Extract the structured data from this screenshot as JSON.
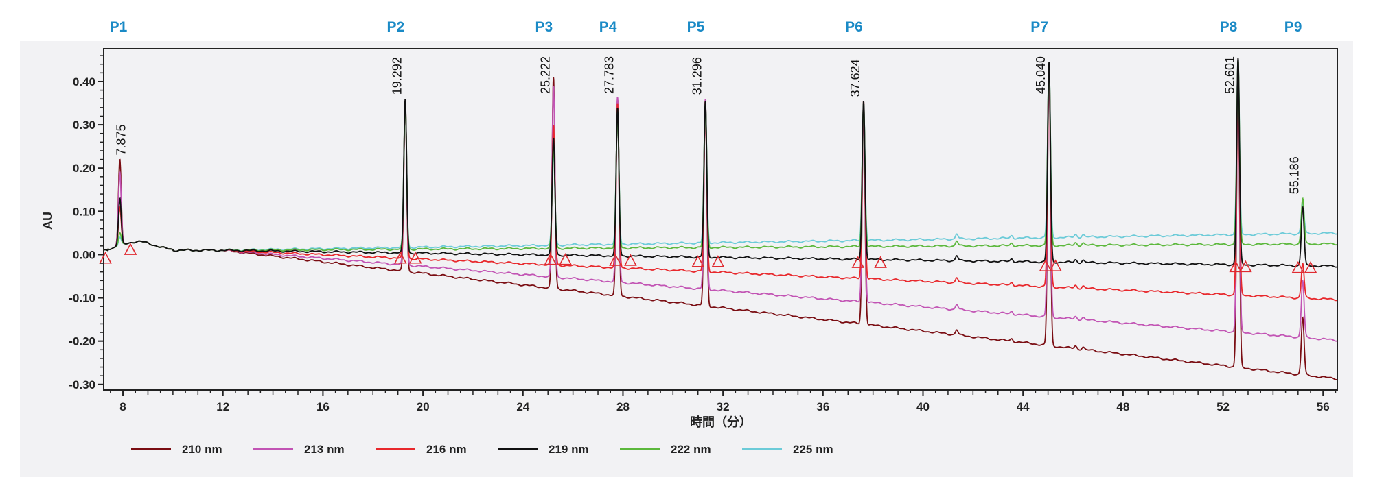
{
  "chart_data": {
    "type": "line",
    "title": "",
    "xlabel": "時間（分）",
    "ylabel": "AU",
    "xlim": [
      7.23,
      56.57
    ],
    "ylim": [
      -0.313,
      0.476
    ],
    "x_ticks": [
      8,
      12,
      16,
      20,
      24,
      28,
      32,
      36,
      40,
      44,
      48,
      52,
      56
    ],
    "x_tick_labels": [
      "8",
      "12",
      "16",
      "20",
      "24",
      "28",
      "32",
      "36",
      "40",
      "44",
      "48",
      "52",
      "56"
    ],
    "y_ticks": [
      0.4,
      0.3,
      0.2,
      0.1,
      0.0,
      -0.1,
      -0.2,
      -0.3
    ],
    "y_tick_labels": [
      "0.40",
      "0.30",
      "0.20",
      "0.10",
      "0.00",
      "-0.10",
      "-0.20",
      "-0.30"
    ],
    "grid": false,
    "legend_position": "bottom",
    "series": [
      {
        "name": "210 nm",
        "color": "#7a0d12",
        "baseline_start": 0.01,
        "baseline_end": -0.29
      },
      {
        "name": "213 nm",
        "color": "#c254b4",
        "baseline_start": 0.01,
        "baseline_end": -0.2
      },
      {
        "name": "216 nm",
        "color": "#e8282c",
        "baseline_start": 0.01,
        "baseline_end": -0.105
      },
      {
        "name": "219 nm",
        "color": "#111111",
        "baseline_start": 0.01,
        "baseline_end": -0.027
      },
      {
        "name": "222 nm",
        "color": "#5cb83c",
        "baseline_start": 0.01,
        "baseline_end": 0.025
      },
      {
        "name": "225 nm",
        "color": "#6ccbd8",
        "baseline_start": 0.01,
        "baseline_end": 0.05
      }
    ],
    "peaks": [
      {
        "label": "P1",
        "retention_time": "7.875",
        "t": 7.875,
        "apex": [
          0.22,
          0.19,
          0.11,
          0.13,
          0.05,
          0.04
        ]
      },
      {
        "label": "P2",
        "retention_time": "19.292",
        "t": 19.292,
        "apex": [
          0.355,
          0.355,
          0.355,
          0.36,
          0.35,
          0.35
        ]
      },
      {
        "label": "P3",
        "retention_time": "25.222",
        "t": 25.222,
        "apex": [
          0.41,
          0.39,
          0.3,
          0.27,
          0.25,
          0.24
        ]
      },
      {
        "label": "P4",
        "retention_time": "27.783",
        "t": 27.783,
        "apex": [
          0.36,
          0.365,
          0.35,
          0.34,
          0.33,
          0.33
        ]
      },
      {
        "label": "P5",
        "retention_time": "31.296",
        "t": 31.296,
        "apex": [
          0.355,
          0.36,
          0.355,
          0.355,
          0.35,
          0.35
        ]
      },
      {
        "label": "P6",
        "retention_time": "37.624",
        "t": 37.624,
        "apex": [
          0.35,
          0.35,
          0.355,
          0.355,
          0.35,
          0.35
        ]
      },
      {
        "label": "P7",
        "retention_time": "45.040",
        "t": 45.04,
        "apex": [
          0.44,
          0.43,
          0.44,
          0.445,
          0.44,
          0.44
        ]
      },
      {
        "label": "P8",
        "retention_time": "52.601",
        "t": 52.601,
        "apex": [
          0.45,
          0.45,
          0.45,
          0.455,
          0.45,
          0.45
        ]
      },
      {
        "label": "P9",
        "retention_time": "55.186",
        "t": 55.186,
        "apex": [
          -0.145,
          -0.06,
          -0.02,
          0.11,
          0.13,
          0.12
        ]
      }
    ],
    "integration_markers": [
      [
        7.3,
        -0.01
      ],
      [
        8.3,
        0.01
      ],
      [
        19.1,
        -0.01
      ],
      [
        19.7,
        -0.01
      ],
      [
        25.1,
        -0.013
      ],
      [
        25.7,
        -0.013
      ],
      [
        27.7,
        -0.015
      ],
      [
        28.3,
        -0.015
      ],
      [
        31.0,
        -0.018
      ],
      [
        31.8,
        -0.018
      ],
      [
        37.4,
        -0.02
      ],
      [
        38.3,
        -0.02
      ],
      [
        44.9,
        -0.028
      ],
      [
        45.3,
        -0.028
      ],
      [
        52.5,
        -0.03
      ],
      [
        52.9,
        -0.03
      ],
      [
        55.0,
        -0.032
      ],
      [
        55.5,
        -0.032
      ]
    ]
  }
}
